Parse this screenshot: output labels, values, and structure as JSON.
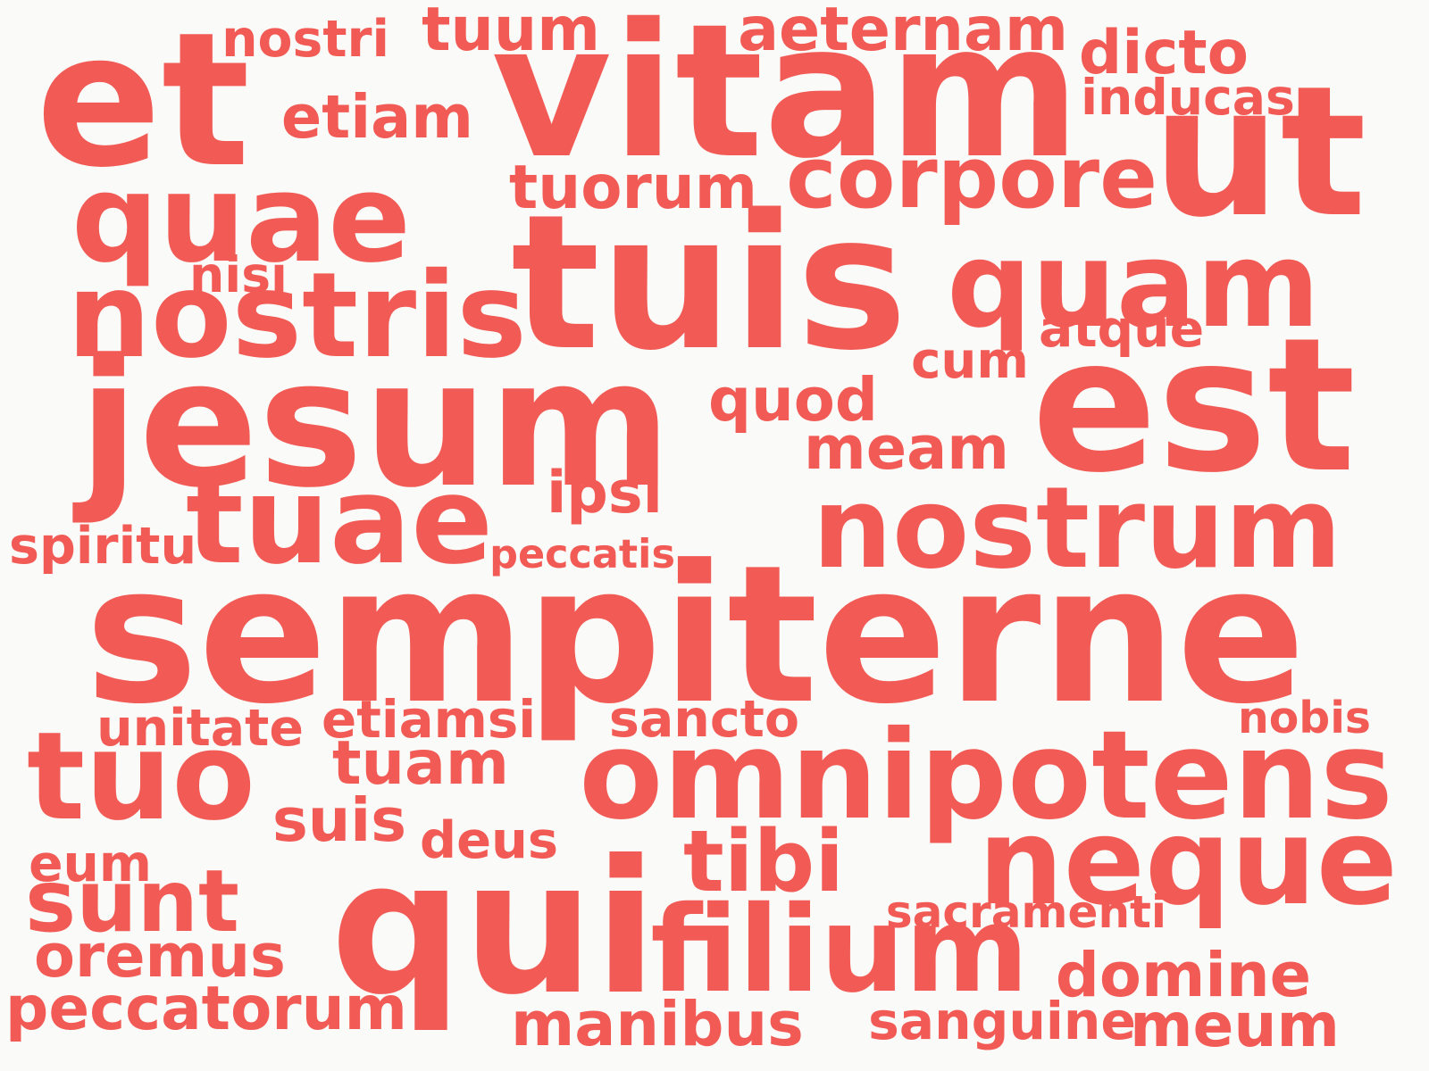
{
  "color": "#f25b55",
  "background": "#fafaf8",
  "words": [
    "sempiterne",
    "jesum",
    "vitam",
    "tuis",
    "qui",
    "et",
    "ut",
    "est",
    "nostris",
    "quae",
    "tuae",
    "nostrum",
    "omnipotens",
    "filium",
    "quam",
    "neque",
    "corpore",
    "tuo",
    "sunt",
    "tibi",
    "domine",
    "meum",
    "peccatorum",
    "manibus",
    "oremus",
    "tuum",
    "aeternam",
    "dicto",
    "inducas",
    "nostri",
    "etiam",
    "tuorum",
    "nisi",
    "atque",
    "cum",
    "quod",
    "meam",
    "ipsi",
    "spiritu",
    "peccatis",
    "unitate",
    "etiamsi",
    "sancto",
    "nobis",
    "tuam",
    "suis",
    "deus",
    "eum",
    "sacramenti",
    "sanguine"
  ]
}
